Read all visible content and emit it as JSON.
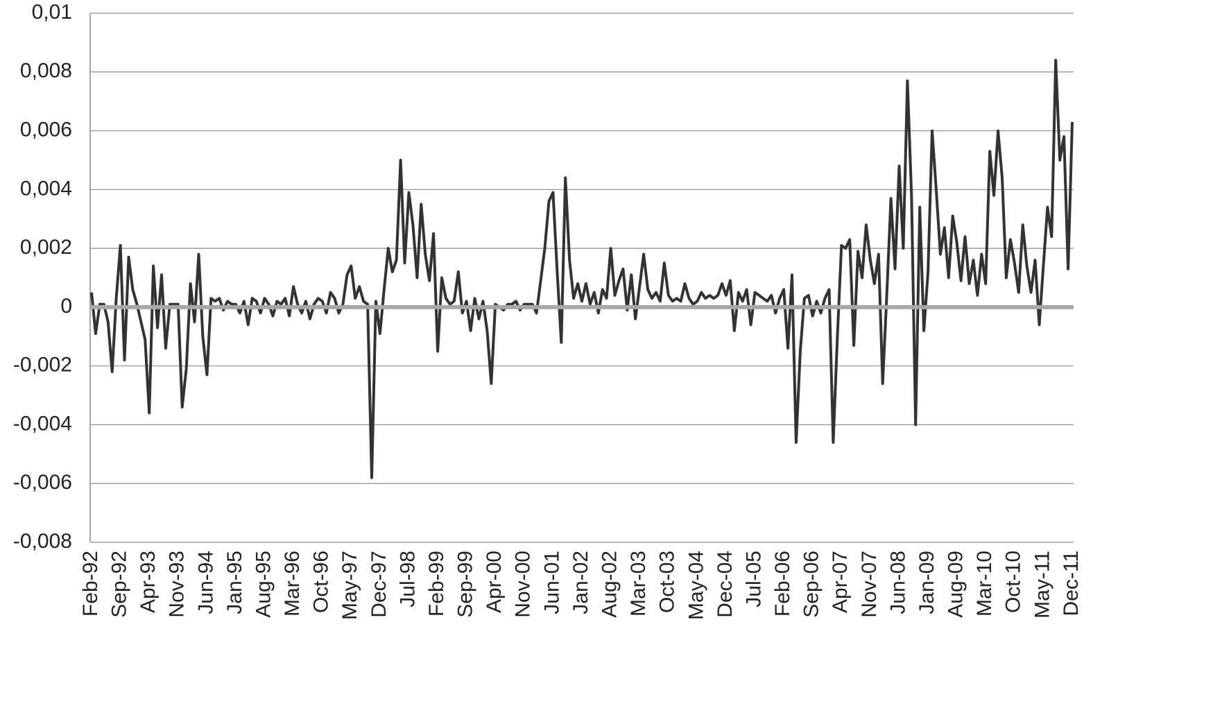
{
  "chart_data": {
    "type": "line",
    "categories": [
      "Feb-92",
      null,
      null,
      null,
      null,
      null,
      null,
      "Sep-92",
      null,
      null,
      null,
      null,
      null,
      null,
      "Apr-93",
      null,
      null,
      null,
      null,
      null,
      null,
      "Nov-93",
      null,
      null,
      null,
      null,
      null,
      null,
      "Jun-94",
      null,
      null,
      null,
      null,
      null,
      null,
      "Jan-95",
      null,
      null,
      null,
      null,
      null,
      null,
      "Aug-95",
      null,
      null,
      null,
      null,
      null,
      null,
      "Mar-96",
      null,
      null,
      null,
      null,
      null,
      null,
      "Oct-96",
      null,
      null,
      null,
      null,
      null,
      null,
      "May-97",
      null,
      null,
      null,
      null,
      null,
      null,
      "Dec-97",
      null,
      null,
      null,
      null,
      null,
      null,
      "Jul-98",
      null,
      null,
      null,
      null,
      null,
      null,
      "Feb-99",
      null,
      null,
      null,
      null,
      null,
      null,
      "Sep-99",
      null,
      null,
      null,
      null,
      null,
      null,
      "Apr-00",
      null,
      null,
      null,
      null,
      null,
      null,
      "Nov-00",
      null,
      null,
      null,
      null,
      null,
      null,
      "Jun-01",
      null,
      null,
      null,
      null,
      null,
      null,
      "Jan-02",
      null,
      null,
      null,
      null,
      null,
      null,
      "Aug-02",
      null,
      null,
      null,
      null,
      null,
      null,
      "Mar-03",
      null,
      null,
      null,
      null,
      null,
      null,
      "Oct-03",
      null,
      null,
      null,
      null,
      null,
      null,
      "May-04",
      null,
      null,
      null,
      null,
      null,
      null,
      "Dec-04",
      null,
      null,
      null,
      null,
      null,
      null,
      "Jul-05",
      null,
      null,
      null,
      null,
      null,
      null,
      "Feb-06",
      null,
      null,
      null,
      null,
      null,
      null,
      "Sep-06",
      null,
      null,
      null,
      null,
      null,
      null,
      "Apr-07",
      null,
      null,
      null,
      null,
      null,
      null,
      "Nov-07",
      null,
      null,
      null,
      null,
      null,
      null,
      "Jun-08",
      null,
      null,
      null,
      null,
      null,
      null,
      "Jan-09",
      null,
      null,
      null,
      null,
      null,
      null,
      "Aug-09",
      null,
      null,
      null,
      null,
      null,
      null,
      "Mar-10",
      null,
      null,
      null,
      null,
      null,
      null,
      "Oct-10",
      null,
      null,
      null,
      null,
      null,
      null,
      "May-11",
      null,
      null,
      null,
      null,
      null,
      null,
      "Dec-11"
    ],
    "values": [
      0.0005,
      -0.0009,
      0.0001,
      0.0001,
      -0.0005,
      -0.0022,
      0.0003,
      0.0021,
      -0.0018,
      0.0017,
      0.0006,
      0.0001,
      -0.0005,
      -0.0011,
      -0.0036,
      0.0014,
      -0.0007,
      0.0011,
      -0.0014,
      0.0001,
      0.0001,
      0.0001,
      -0.0034,
      -0.0021,
      0.0008,
      -0.0005,
      0.0018,
      -0.001,
      -0.0023,
      0.0003,
      0.0002,
      0.0003,
      -0.0001,
      0.0002,
      0.0001,
      0.0001,
      -0.0002,
      0.0002,
      -0.0006,
      0.0003,
      0.0002,
      -0.0002,
      0.0003,
      0.0001,
      -0.0003,
      0.0002,
      0.0001,
      0.0003,
      -0.0003,
      0.0007,
      0.0001,
      -0.0002,
      0.0002,
      -0.0004,
      0.0001,
      0.0003,
      0.0002,
      -0.0002,
      0.0005,
      0.0003,
      -0.0002,
      0.0001,
      0.0011,
      0.0014,
      0.0003,
      0.0007,
      0.0002,
      0.0001,
      -0.0058,
      0.0002,
      -0.0009,
      0.0006,
      0.002,
      0.0012,
      0.0016,
      0.005,
      0.0015,
      0.0039,
      0.0028,
      0.001,
      0.0035,
      0.0018,
      0.0009,
      0.0025,
      -0.0015,
      0.001,
      0.0003,
      0.0001,
      0.0002,
      0.0012,
      -0.0002,
      0.0002,
      -0.0008,
      0.0003,
      -0.0004,
      0.0002,
      -0.0008,
      -0.0026,
      0.0001,
      0,
      -0.0001,
      0.0001,
      0.0001,
      0.0002,
      -0.0001,
      0.0001,
      0.0001,
      0.0001,
      -0.0002,
      0.0009,
      0.002,
      0.0036,
      0.0039,
      0.0012,
      -0.0012,
      0.0044,
      0.0016,
      0.0003,
      0.0008,
      0.0002,
      0.0008,
      0.0001,
      0.0005,
      -0.0002,
      0.0006,
      0.0003,
      0.002,
      0.0004,
      0.0009,
      0.0013,
      -0.0001,
      0.0011,
      -0.0004,
      0.0007,
      0.0018,
      0.0006,
      0.0003,
      0.0005,
      0.0002,
      0.0015,
      0.0004,
      0.0002,
      0.0003,
      0.0002,
      0.0008,
      0.0003,
      0.0001,
      0.0002,
      0.0005,
      0.0003,
      0.0004,
      0.0003,
      0.0004,
      0.0008,
      0.0004,
      0.0009,
      -0.0008,
      0.0005,
      0.0002,
      0.0006,
      -0.0006,
      0.0005,
      0.0004,
      0.0003,
      0.0002,
      0.0004,
      -0.0002,
      0.0003,
      0.0006,
      -0.0014,
      0.0011,
      -0.0046,
      -0.0015,
      0.0003,
      0.0004,
      -0.0003,
      0.0002,
      -0.0002,
      0.0003,
      0.0006,
      -0.0046,
      -0.001,
      0.0021,
      0.002,
      0.0023,
      -0.0013,
      0.0019,
      0.001,
      0.0028,
      0.0016,
      0.0008,
      0.0018,
      -0.0026,
      0.0004,
      0.0037,
      0.0013,
      0.0048,
      0.002,
      0.0077,
      0.0038,
      -0.004,
      0.0034,
      -0.0008,
      0.0012,
      0.006,
      0.004,
      0.0018,
      0.0027,
      0.001,
      0.0031,
      0.0022,
      0.0009,
      0.0024,
      0.0008,
      0.0016,
      0.0004,
      0.0018,
      0.0008,
      0.0053,
      0.0038,
      0.006,
      0.0044,
      0.001,
      0.0023,
      0.0015,
      0.0005,
      0.0028,
      0.0014,
      0.0005,
      0.0016,
      -0.0006,
      0.0014,
      0.0034,
      0.0024,
      0.0084,
      0.005,
      0.0058,
      0.0013,
      0.0063
    ],
    "color": "#333333",
    "ylim": [
      -0.008,
      0.01
    ],
    "yticks": [
      {
        "value": -0.008,
        "label": "-0,008"
      },
      {
        "value": -0.006,
        "label": "-0,006"
      },
      {
        "value": -0.004,
        "label": "-0,004"
      },
      {
        "value": -0.002,
        "label": "-0,002"
      },
      0,
      {
        "value": 0.002,
        "label": "0,002"
      },
      {
        "value": 0.004,
        "label": "0,004"
      },
      {
        "value": 0.006,
        "label": "0,006"
      },
      {
        "value": 0.008,
        "label": "0,008"
      },
      {
        "value": 0.01,
        "label": "0,01"
      }
    ],
    "grid": true
  }
}
